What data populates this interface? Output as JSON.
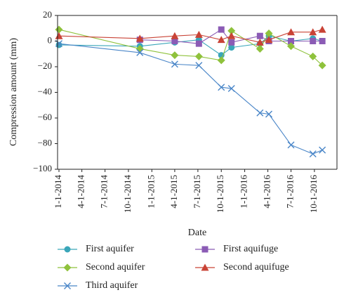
{
  "chart_data": {
    "type": "line",
    "xlabel": "Date",
    "ylabel": "Compression amount (mm)",
    "ylim": [
      -100,
      20
    ],
    "yticks": [
      "20",
      "0",
      "−20",
      "−40",
      "−60",
      "−80",
      "−100"
    ],
    "xlim": [
      "2014-01-01",
      "2016-12-01"
    ],
    "xticks": [
      "1-1-2014",
      "4-1-2014",
      "7-1-2014",
      "10-1-2014",
      "1-1-2015",
      "4-1-2015",
      "7-1-2015",
      "10-1-2015",
      "1-1-2016",
      "4-1-2016",
      "7-1-2016",
      "10-1-2016"
    ],
    "grid": false,
    "legend_position": "bottom",
    "series": [
      {
        "name": "First aquifer",
        "color": "#3aa6b9",
        "marker": "circle",
        "points": [
          [
            "2014-01-01",
            -3
          ],
          [
            "2014-11-15",
            -4
          ],
          [
            "2015-04-01",
            -1
          ],
          [
            "2015-07-05",
            1
          ],
          [
            "2015-10-01",
            -11
          ],
          [
            "2015-11-10",
            -5
          ],
          [
            "2016-03-01",
            -2
          ],
          [
            "2016-04-05",
            4
          ],
          [
            "2016-07-01",
            0
          ],
          [
            "2016-09-25",
            2
          ],
          [
            "2016-11-01",
            0
          ]
        ]
      },
      {
        "name": "First aquifuge",
        "color": "#8b5bb5",
        "marker": "square",
        "points": [
          [
            "2014-11-15",
            1
          ],
          [
            "2015-04-01",
            0
          ],
          [
            "2015-07-05",
            -2
          ],
          [
            "2015-10-01",
            9
          ],
          [
            "2015-11-10",
            -1
          ],
          [
            "2016-03-01",
            4
          ],
          [
            "2016-04-05",
            0
          ],
          [
            "2016-07-01",
            0
          ],
          [
            "2016-09-25",
            0
          ],
          [
            "2016-11-01",
            0
          ]
        ]
      },
      {
        "name": "Second aquifer",
        "color": "#8fc23c",
        "marker": "diamond",
        "points": [
          [
            "2014-01-01",
            9
          ],
          [
            "2014-11-15",
            -6
          ],
          [
            "2015-04-01",
            -11
          ],
          [
            "2015-07-05",
            -12
          ],
          [
            "2015-10-01",
            -15
          ],
          [
            "2015-11-10",
            8
          ],
          [
            "2016-03-01",
            -6
          ],
          [
            "2016-04-05",
            6
          ],
          [
            "2016-07-01",
            -4
          ],
          [
            "2016-09-25",
            -12
          ],
          [
            "2016-11-01",
            -19
          ]
        ]
      },
      {
        "name": "Second aquifuge",
        "color": "#c94336",
        "marker": "triangle",
        "points": [
          [
            "2014-01-01",
            4
          ],
          [
            "2014-11-15",
            2
          ],
          [
            "2015-04-01",
            4
          ],
          [
            "2015-07-05",
            5
          ],
          [
            "2015-10-01",
            1
          ],
          [
            "2015-11-10",
            4
          ],
          [
            "2016-03-01",
            -1
          ],
          [
            "2016-04-05",
            1
          ],
          [
            "2016-07-01",
            7
          ],
          [
            "2016-09-25",
            7
          ],
          [
            "2016-11-01",
            9
          ]
        ]
      },
      {
        "name": "Third aquifer",
        "color": "#4a86c8",
        "marker": "x",
        "points": [
          [
            "2014-01-01",
            -2
          ],
          [
            "2014-11-15",
            -9
          ],
          [
            "2015-04-01",
            -18
          ],
          [
            "2015-07-05",
            -19
          ],
          [
            "2015-10-01",
            -36
          ],
          [
            "2015-11-10",
            -37
          ],
          [
            "2016-03-01",
            -56
          ],
          [
            "2016-04-05",
            -57
          ],
          [
            "2016-07-01",
            -81
          ],
          [
            "2016-09-25",
            -88
          ],
          [
            "2016-11-01",
            -85
          ]
        ]
      }
    ],
    "legend_order": [
      "First aquifer",
      "First aquifuge",
      "Second aquifer",
      "Second aquifuge",
      "Third aquifer"
    ]
  }
}
